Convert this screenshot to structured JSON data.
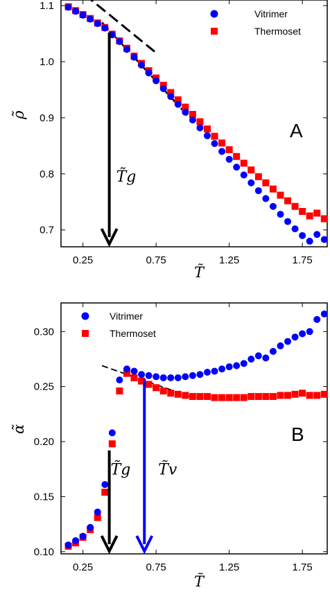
{
  "chart_data": [
    {
      "panel": "A",
      "type": "scatter",
      "xlabel": "T̃",
      "ylabel": "ρ̃",
      "xlim": [
        0.1,
        1.92
      ],
      "ylim": [
        0.67,
        1.11
      ],
      "xticks": [
        "0.25",
        "0.75",
        "1.25",
        "1.75"
      ],
      "xtick_values": [
        0.25,
        0.75,
        1.25,
        1.75
      ],
      "yticks": [
        "0.7",
        "0.8",
        "0.9",
        "1.0",
        "1.1"
      ],
      "ytick_values": [
        0.7,
        0.8,
        0.9,
        1.0,
        1.1
      ],
      "grid": false,
      "legend_position": "top-right",
      "panel_label": "A",
      "series": [
        {
          "name": "Vitrimer",
          "color": "#0000ff",
          "marker": "circle",
          "x": [
            0.15,
            0.2,
            0.25,
            0.3,
            0.35,
            0.4,
            0.45,
            0.5,
            0.55,
            0.6,
            0.65,
            0.7,
            0.75,
            0.8,
            0.85,
            0.9,
            0.95,
            1.0,
            1.05,
            1.1,
            1.15,
            1.2,
            1.25,
            1.3,
            1.35,
            1.4,
            1.45,
            1.5,
            1.55,
            1.6,
            1.65,
            1.7,
            1.75,
            1.8,
            1.85,
            1.9
          ],
          "y": [
            1.097,
            1.09,
            1.083,
            1.076,
            1.068,
            1.06,
            1.048,
            1.036,
            1.022,
            1.008,
            0.994,
            0.98,
            0.966,
            0.952,
            0.938,
            0.924,
            0.91,
            0.896,
            0.882,
            0.868,
            0.854,
            0.84,
            0.826,
            0.812,
            0.798,
            0.784,
            0.77,
            0.756,
            0.742,
            0.728,
            0.715,
            0.702,
            0.69,
            0.68,
            0.692,
            0.683
          ]
        },
        {
          "name": "Thermoset",
          "color": "#ff0000",
          "marker": "square",
          "x": [
            0.15,
            0.2,
            0.25,
            0.3,
            0.35,
            0.4,
            0.45,
            0.5,
            0.55,
            0.6,
            0.65,
            0.7,
            0.75,
            0.8,
            0.85,
            0.9,
            0.95,
            1.0,
            1.05,
            1.1,
            1.15,
            1.2,
            1.25,
            1.3,
            1.35,
            1.4,
            1.45,
            1.5,
            1.55,
            1.6,
            1.65,
            1.7,
            1.75,
            1.8,
            1.85,
            1.9
          ],
          "y": [
            1.098,
            1.091,
            1.084,
            1.077,
            1.069,
            1.061,
            1.049,
            1.037,
            1.024,
            1.01,
            0.997,
            0.984,
            0.971,
            0.958,
            0.945,
            0.932,
            0.919,
            0.906,
            0.893,
            0.88,
            0.867,
            0.855,
            0.843,
            0.831,
            0.819,
            0.807,
            0.795,
            0.784,
            0.773,
            0.762,
            0.752,
            0.742,
            0.733,
            0.725,
            0.73,
            0.72
          ]
        }
      ],
      "annotations": {
        "arrow_label": "T̃g",
        "arrow_x": 0.43,
        "arrow_color": "#000000"
      }
    },
    {
      "panel": "B",
      "type": "scatter",
      "xlabel": "T̃",
      "ylabel": "α̃",
      "xlim": [
        0.1,
        1.92
      ],
      "ylim": [
        0.098,
        0.326
      ],
      "xticks": [
        "0.25",
        "0.75",
        "1.25",
        "1.75"
      ],
      "xtick_values": [
        0.25,
        0.75,
        1.25,
        1.75
      ],
      "yticks": [
        "0.10",
        "0.15",
        "0.20",
        "0.25",
        "0.30"
      ],
      "ytick_values": [
        0.1,
        0.15,
        0.2,
        0.25,
        0.3
      ],
      "grid": false,
      "legend_position": "top-left",
      "panel_label": "B",
      "series": [
        {
          "name": "Vitrimer",
          "color": "#0000ff",
          "marker": "circle",
          "x": [
            0.15,
            0.2,
            0.25,
            0.3,
            0.35,
            0.4,
            0.45,
            0.5,
            0.55,
            0.6,
            0.65,
            0.7,
            0.75,
            0.8,
            0.85,
            0.9,
            0.95,
            1.0,
            1.05,
            1.1,
            1.15,
            1.2,
            1.25,
            1.3,
            1.35,
            1.4,
            1.45,
            1.5,
            1.55,
            1.6,
            1.65,
            1.7,
            1.75,
            1.8,
            1.85,
            1.9
          ],
          "y": [
            0.106,
            0.11,
            0.114,
            0.122,
            0.136,
            0.161,
            0.208,
            0.256,
            0.266,
            0.264,
            0.261,
            0.26,
            0.259,
            0.258,
            0.258,
            0.258,
            0.259,
            0.26,
            0.261,
            0.263,
            0.264,
            0.266,
            0.268,
            0.269,
            0.271,
            0.275,
            0.278,
            0.276,
            0.282,
            0.287,
            0.291,
            0.295,
            0.298,
            0.3,
            0.311,
            0.316
          ]
        },
        {
          "name": "Thermoset",
          "color": "#ff0000",
          "marker": "square",
          "x": [
            0.15,
            0.2,
            0.25,
            0.3,
            0.35,
            0.4,
            0.45,
            0.5,
            0.55,
            0.6,
            0.65,
            0.7,
            0.75,
            0.8,
            0.85,
            0.9,
            0.95,
            1.0,
            1.05,
            1.1,
            1.15,
            1.2,
            1.25,
            1.3,
            1.35,
            1.4,
            1.45,
            1.5,
            1.55,
            1.6,
            1.65,
            1.7,
            1.75,
            1.8,
            1.85,
            1.9
          ],
          "y": [
            0.105,
            0.108,
            0.113,
            0.12,
            0.131,
            0.154,
            0.198,
            0.246,
            0.262,
            0.258,
            0.255,
            0.252,
            0.249,
            0.246,
            0.244,
            0.243,
            0.242,
            0.241,
            0.241,
            0.241,
            0.24,
            0.24,
            0.24,
            0.24,
            0.24,
            0.241,
            0.241,
            0.241,
            0.241,
            0.242,
            0.242,
            0.243,
            0.244,
            0.242,
            0.242,
            0.243
          ]
        }
      ],
      "annotations": {
        "arrow_label": "T̃g",
        "arrow_x": 0.43,
        "arrow_color": "#000000",
        "arrow2_label": "T̃v",
        "arrow2_x": 0.67,
        "arrow2_color": "#0000ff"
      }
    }
  ]
}
